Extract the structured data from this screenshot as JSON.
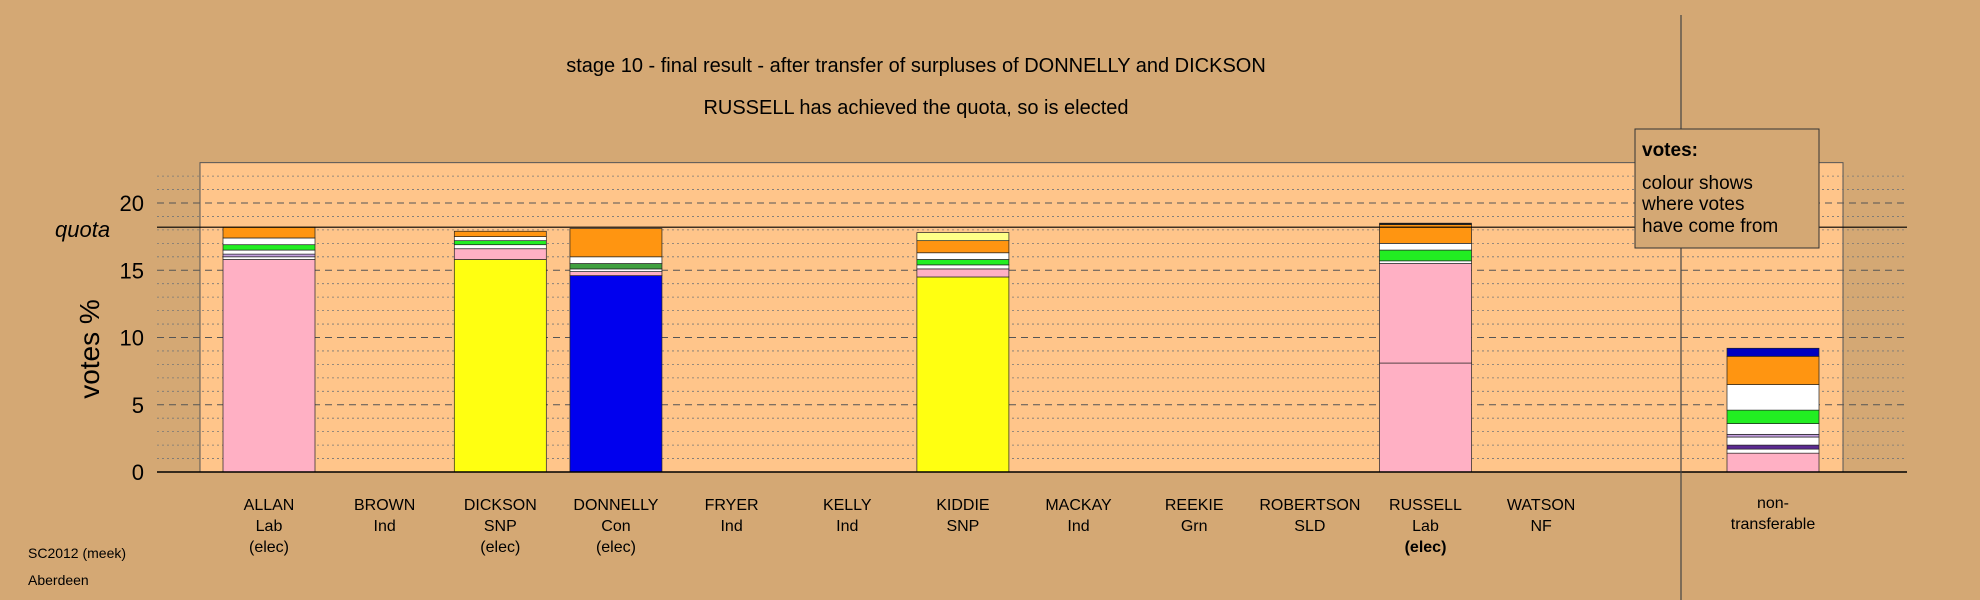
{
  "chart_data": {
    "type": "bar",
    "stacked": true,
    "title": "stage 10 - final result - after transfer of surpluses of DONNELLY and DICKSON",
    "subtitle": "RUSSELL has achieved the quota, so is elected",
    "ylabel": "votes %",
    "ylim": [
      0,
      23
    ],
    "yticks": [
      0,
      5,
      10,
      15,
      20
    ],
    "quota": 18.2,
    "quota_label": "quota",
    "legend": {
      "title": "votes:",
      "lines": [
        "colour shows",
        "where votes",
        "have come from"
      ],
      "position": "top-right"
    },
    "grid": "dashed major at 5, dotted minor at 1",
    "candidates": [
      {
        "name": "ALLAN",
        "party": "Lab",
        "status": "(elec)",
        "bold_status": false,
        "segments": [
          {
            "color": "#ffb0c4",
            "value": 15.8
          },
          {
            "color": "#ffffff",
            "value": 0.2
          },
          {
            "color": "#c4a0e0",
            "value": 0.2
          },
          {
            "color": "#ffffff",
            "value": 0.3
          },
          {
            "color": "#22ee22",
            "value": 0.4
          },
          {
            "color": "#ffffff",
            "value": 0.5
          },
          {
            "color": "#ff9511",
            "value": 0.8
          }
        ]
      },
      {
        "name": "BROWN",
        "party": "Ind",
        "status": "",
        "bold_status": false,
        "segments": []
      },
      {
        "name": "DICKSON",
        "party": "SNP",
        "status": "(elec)",
        "bold_status": false,
        "segments": [
          {
            "color": "#ffff11",
            "value": 15.8
          },
          {
            "color": "#ffb0c4",
            "value": 0.8
          },
          {
            "color": "#ffffff",
            "value": 0.3
          },
          {
            "color": "#22ee22",
            "value": 0.3
          },
          {
            "color": "#ffffff",
            "value": 0.3
          },
          {
            "color": "#ff9511",
            "value": 0.4
          }
        ]
      },
      {
        "name": "DONNELLY",
        "party": "Con",
        "status": "(elec)",
        "bold_status": false,
        "segments": [
          {
            "color": "#0000ee",
            "value": 14.6
          },
          {
            "color": "#ffb0c4",
            "value": 0.3
          },
          {
            "color": "#ffffff",
            "value": 0.2
          },
          {
            "color": "#40a040",
            "value": 0.4
          },
          {
            "color": "#ffffff",
            "value": 0.5
          },
          {
            "color": "#ff9511",
            "value": 2.1
          }
        ]
      },
      {
        "name": "FRYER",
        "party": "Ind",
        "status": "",
        "bold_status": false,
        "segments": []
      },
      {
        "name": "KELLY",
        "party": "Ind",
        "status": "",
        "bold_status": false,
        "segments": []
      },
      {
        "name": "KIDDIE",
        "party": "SNP",
        "status": "",
        "bold_status": false,
        "segments": [
          {
            "color": "#ffff11",
            "value": 14.5
          },
          {
            "color": "#ffb0c4",
            "value": 0.6
          },
          {
            "color": "#ffffff",
            "value": 0.3
          },
          {
            "color": "#22ee22",
            "value": 0.4
          },
          {
            "color": "#ffffff",
            "value": 0.5
          },
          {
            "color": "#ff9511",
            "value": 0.9
          },
          {
            "color": "#ffff88",
            "value": 0.6
          }
        ]
      },
      {
        "name": "MACKAY",
        "party": "Ind",
        "status": "",
        "bold_status": false,
        "segments": []
      },
      {
        "name": "REEKIE",
        "party": "Grn",
        "status": "",
        "bold_status": false,
        "segments": []
      },
      {
        "name": "ROBERTSON",
        "party": "SLD",
        "status": "",
        "bold_status": false,
        "segments": []
      },
      {
        "name": "RUSSELL",
        "party": "Lab",
        "status": "(elec)",
        "bold_status": true,
        "segments": [
          {
            "color": "#ffb0c4",
            "value": 8.1
          },
          {
            "color": "#ffb0c4",
            "value": 7.4
          },
          {
            "color": "#ffffff",
            "value": 0.2
          },
          {
            "color": "#22ee22",
            "value": 0.8
          },
          {
            "color": "#ffffff",
            "value": 0.5
          },
          {
            "color": "#ff9511",
            "value": 1.4
          },
          {
            "color": "#111111",
            "value": 0.1
          }
        ]
      },
      {
        "name": "WATSON",
        "party": "NF",
        "status": "",
        "bold_status": false,
        "segments": []
      }
    ],
    "nontransferable": {
      "label_lines": [
        "non-",
        "transferable"
      ],
      "segments": [
        {
          "color": "#ffb0c4",
          "value": 1.4
        },
        {
          "color": "#ffffff",
          "value": 0.3
        },
        {
          "color": "#5a2a90",
          "value": 0.3
        },
        {
          "color": "#ffffff",
          "value": 0.6
        },
        {
          "color": "#c4a0e0",
          "value": 0.2
        },
        {
          "color": "#ffffff",
          "value": 0.8
        },
        {
          "color": "#22ee22",
          "value": 1.0
        },
        {
          "color": "#ffffff",
          "value": 1.9
        },
        {
          "color": "#ff9511",
          "value": 2.1
        },
        {
          "color": "#0000c0",
          "value": 0.6
        }
      ]
    }
  },
  "footer": {
    "line1": "SC2012 (meek)",
    "line2": "Aberdeen"
  },
  "colors": {
    "background": "#d4a874",
    "plot_area": "#ffc58a"
  }
}
